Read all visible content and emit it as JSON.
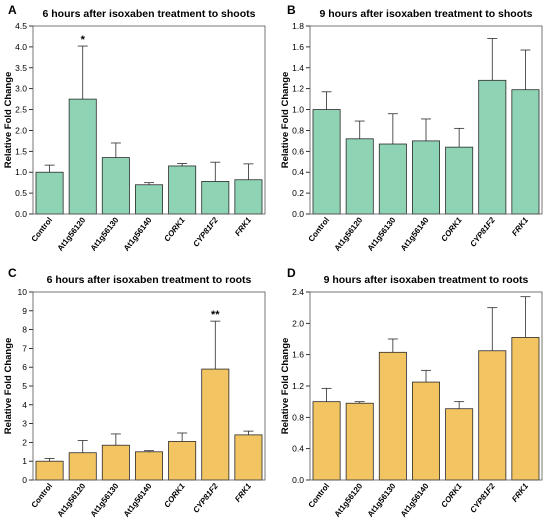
{
  "chart_data": [
    {
      "panel": "A",
      "type": "bar",
      "title": "6 hours after isoxaben treatment to shoots",
      "ylabel": "Relative Fold Change",
      "xlabel": "",
      "ylim": [
        0,
        4.5
      ],
      "yticks": [
        "0.0",
        "0.5",
        "1.0",
        "1.5",
        "2.0",
        "2.5",
        "3.0",
        "3.5",
        "4.0",
        "4.5"
      ],
      "categories": [
        "Control",
        "At1g56120",
        "At1g56130",
        "At1g56140",
        "CORK1",
        "CYP81F2",
        "FRK1"
      ],
      "italic_categories": [
        "CORK1",
        "CYP81F2",
        "FRK1"
      ],
      "values": [
        1.0,
        2.75,
        1.35,
        0.7,
        1.15,
        0.78,
        0.82
      ],
      "errors": [
        0.17,
        1.27,
        0.35,
        0.05,
        0.06,
        0.46,
        0.38
      ],
      "significance": [
        "",
        "*",
        "",
        "",
        "",
        "",
        ""
      ],
      "color": "#8fd3b5",
      "grid": false
    },
    {
      "panel": "B",
      "type": "bar",
      "title": "9 hours after isoxaben treatment to shoots",
      "ylabel": "Relative Fold Change",
      "xlabel": "",
      "ylim": [
        0,
        1.8
      ],
      "yticks": [
        "0.0",
        "0.2",
        "0.4",
        "0.6",
        "0.8",
        "1.0",
        "1.2",
        "1.4",
        "1.6",
        "1.8"
      ],
      "categories": [
        "Control",
        "At1g56120",
        "At1g56130",
        "At1g56140",
        "CORK1",
        "CYP81F2",
        "FRK1"
      ],
      "italic_categories": [
        "CORK1",
        "CYP81F2",
        "FRK1"
      ],
      "values": [
        1.0,
        0.72,
        0.67,
        0.7,
        0.64,
        1.28,
        1.19
      ],
      "errors": [
        0.17,
        0.17,
        0.29,
        0.21,
        0.18,
        0.4,
        0.38
      ],
      "significance": [
        "",
        "",
        "",
        "",
        "",
        "",
        ""
      ],
      "color": "#8fd3b5",
      "grid": false
    },
    {
      "panel": "C",
      "type": "bar",
      "title": "6 hours after isoxaben treatment to roots",
      "ylabel": "Relative Fold Change",
      "xlabel": "",
      "ylim": [
        0,
        10
      ],
      "yticks": [
        "0",
        "1",
        "2",
        "3",
        "4",
        "5",
        "6",
        "7",
        "8",
        "9",
        "10"
      ],
      "categories": [
        "Control",
        "At1g56120",
        "At1g56130",
        "At1g56140",
        "CORK1",
        "CYP81F2",
        "FRK1"
      ],
      "italic_categories": [
        "CORK1",
        "CYP81F2",
        "FRK1"
      ],
      "values": [
        1.0,
        1.45,
        1.85,
        1.5,
        2.05,
        5.9,
        2.4
      ],
      "errors": [
        0.15,
        0.65,
        0.6,
        0.06,
        0.45,
        2.55,
        0.2
      ],
      "significance": [
        "",
        "",
        "",
        "",
        "",
        "**",
        ""
      ],
      "color": "#f2c462",
      "grid": false
    },
    {
      "panel": "D",
      "type": "bar",
      "title": "9 hours after isoxaben treatment to roots",
      "ylabel": "Relative Fold Change",
      "xlabel": "",
      "ylim": [
        0,
        2.4
      ],
      "yticks": [
        "0.0",
        "0.4",
        "0.8",
        "1.2",
        "1.6",
        "2.0",
        "2.4"
      ],
      "categories": [
        "Control",
        "At1g56120",
        "At1g56130",
        "At1g56140",
        "CORK1",
        "CYP81F2",
        "FRK1"
      ],
      "italic_categories": [
        "CORK1",
        "CYP81F2",
        "FRK1"
      ],
      "values": [
        1.0,
        0.98,
        1.63,
        1.25,
        0.91,
        1.65,
        1.82
      ],
      "errors": [
        0.17,
        0.02,
        0.17,
        0.15,
        0.09,
        0.55,
        0.52
      ],
      "significance": [
        "",
        "",
        "",
        "",
        "",
        "",
        ""
      ],
      "color": "#f2c462",
      "grid": false
    }
  ]
}
